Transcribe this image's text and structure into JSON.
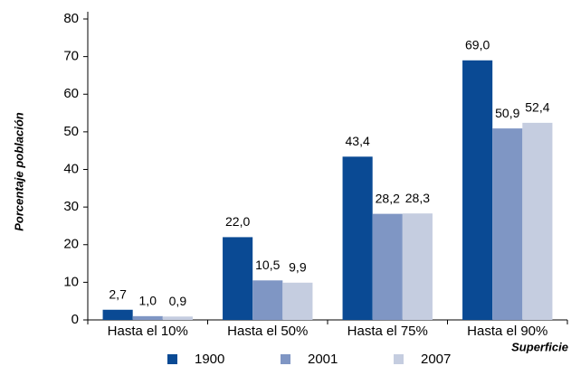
{
  "chart_data": {
    "type": "bar",
    "y_label": "Porcentaje población",
    "x_label": "Superficie",
    "categories": [
      "Hasta el 10%",
      "Hasta el 50%",
      "Hasta el 75%",
      "Hasta el 90%"
    ],
    "series": [
      {
        "name": "1900",
        "color": "#0a4a94",
        "values": [
          2.7,
          22.0,
          43.4,
          69.0
        ],
        "value_labels": [
          "2,7",
          "22,0",
          "43,4",
          "69,0"
        ]
      },
      {
        "name": "2001",
        "color": "#7f96c4",
        "values": [
          1.0,
          10.5,
          28.2,
          50.9
        ],
        "value_labels": [
          "1,0",
          "10,5",
          "28,2",
          "50,9"
        ]
      },
      {
        "name": "2007",
        "color": "#c5cde0",
        "values": [
          0.9,
          9.9,
          28.3,
          52.4
        ],
        "value_labels": [
          "0,9",
          "9,9",
          "28,3",
          "52,4"
        ]
      }
    ],
    "ylim": [
      0,
      80
    ],
    "yticks": [
      0,
      10,
      20,
      30,
      40,
      50,
      60,
      70,
      80
    ],
    "grid": false,
    "legend": "bottom"
  }
}
